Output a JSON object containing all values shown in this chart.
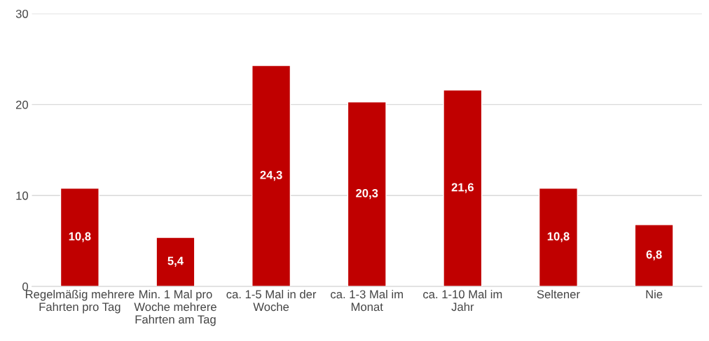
{
  "chart_data": {
    "type": "bar",
    "categories": [
      "Regelmäßig mehrere Fahrten pro Tag",
      "Min. 1 Mal pro Woche mehrere Fahrten am Tag",
      "ca. 1-5 Mal in der Woche",
      "ca. 1-3 Mal im Monat",
      "ca. 1-10 Mal im Jahr",
      "Seltener",
      "Nie"
    ],
    "values": [
      10.8,
      5.4,
      24.3,
      20.3,
      21.6,
      10.8,
      6.8
    ],
    "value_labels": [
      "10,8",
      "5,4",
      "24,3",
      "20,3",
      "21,6",
      "10,8",
      "6,8"
    ],
    "color": "#c00000",
    "ylim": [
      0,
      30
    ],
    "yticks": [
      0,
      10,
      20,
      30
    ],
    "grid": "y"
  }
}
